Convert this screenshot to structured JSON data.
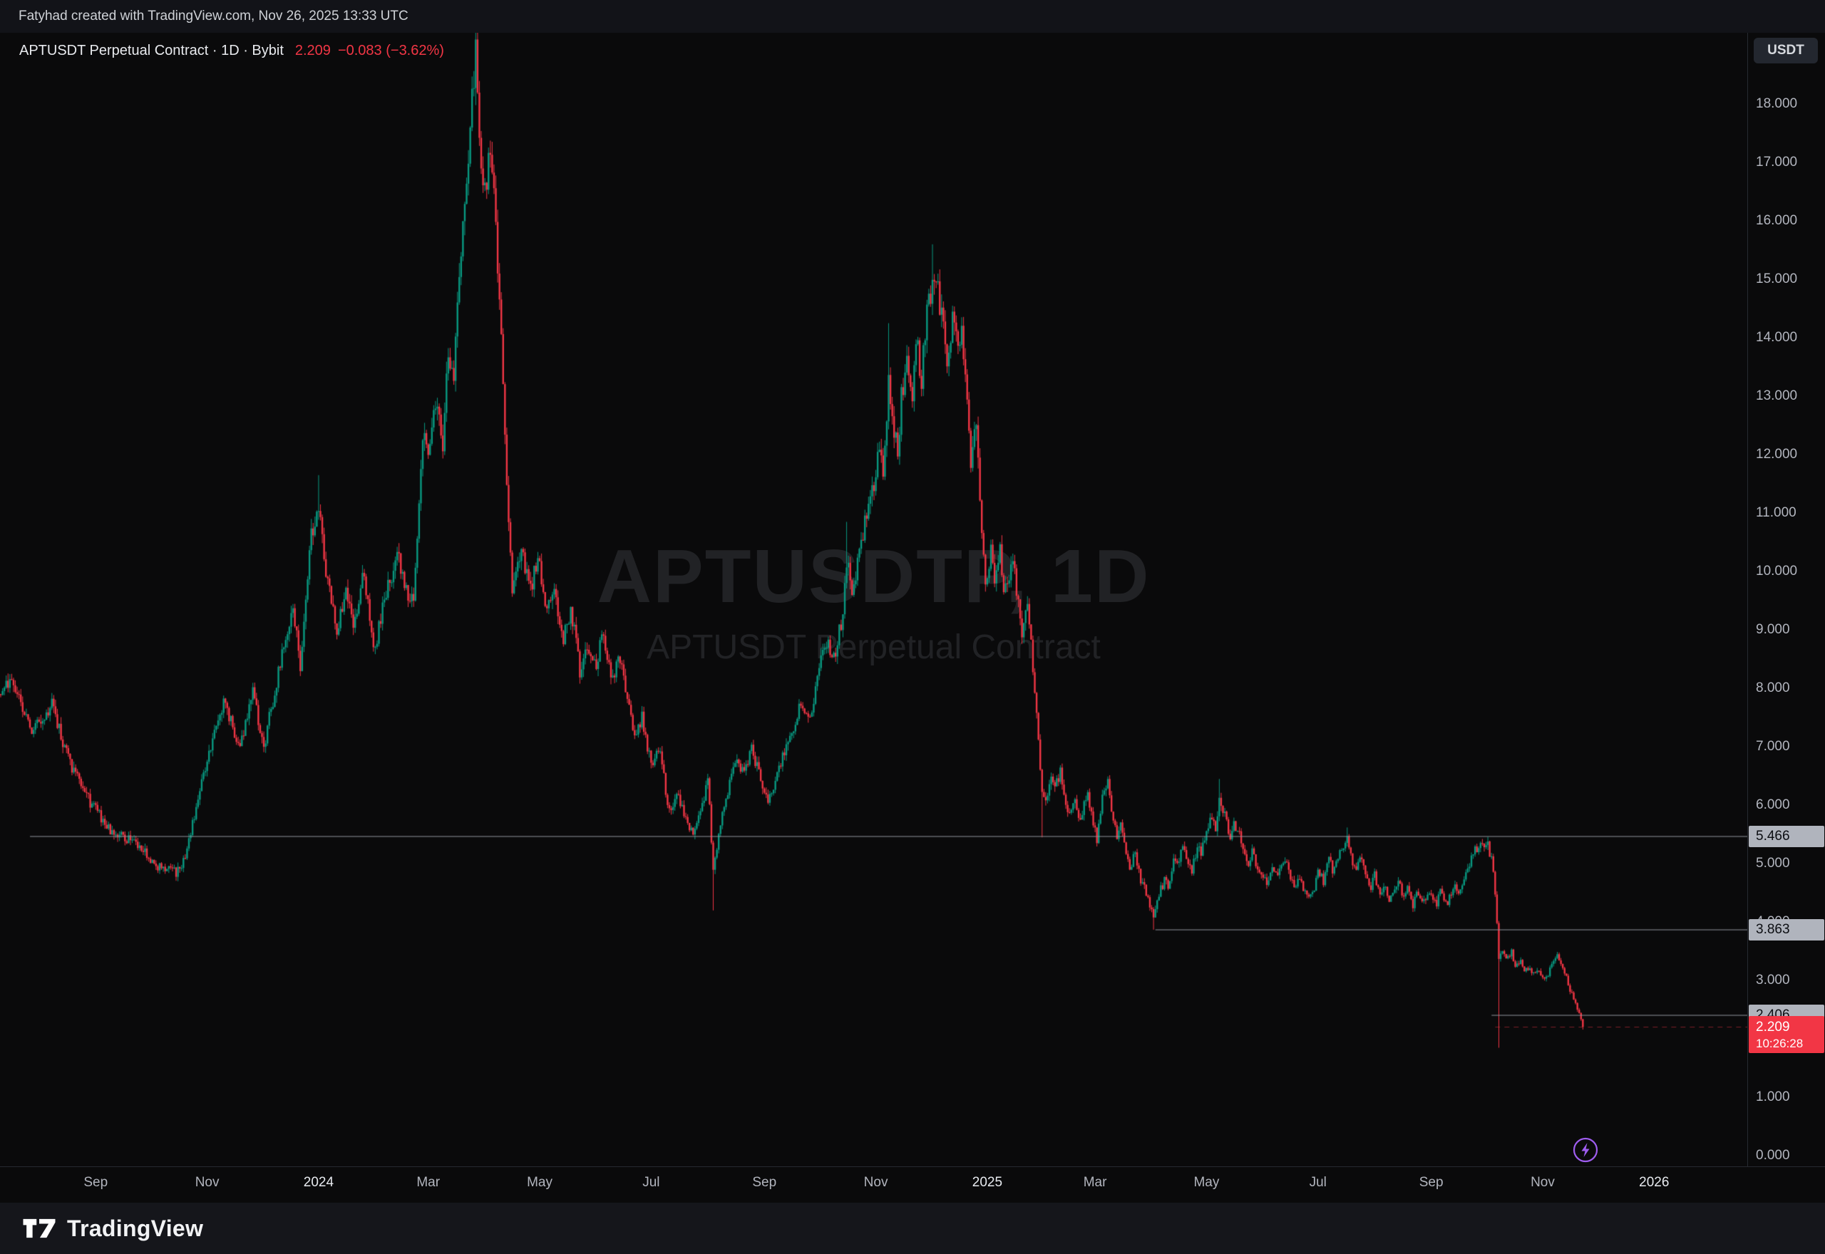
{
  "page": {
    "attribution": "Fatyhad created with TradingView.com, Nov 26, 2025 13:33 UTC",
    "footer_brand": "TradingView"
  },
  "legend": {
    "symbol_title": "APTUSDT Perpetual Contract · 1D · Bybit",
    "last_price": "2.209",
    "change": "−0.083 (−3.62%)"
  },
  "watermark": {
    "line1": "APTUSDTP, 1D",
    "line2": "APTUSDT Perpetual Contract"
  },
  "axis": {
    "currency_button": "USDT"
  },
  "chart_data": {
    "type": "candlestick",
    "symbol": "APTUSDT Perpetual Contract",
    "ticker": "APTUSDTP",
    "exchange": "Bybit",
    "timeframe": "1D",
    "quote_currency": "USDT",
    "last_price": 2.209,
    "change_abs": -0.083,
    "change_pct": -3.62,
    "colors": {
      "up": "#089981",
      "down": "#f23645",
      "ray": "#8f939c",
      "label_bg": "#b0b4bd",
      "label_text": "#0c0e12",
      "current_bg": "#f23645",
      "current_text": "#ffffff",
      "axis_text": "#b2b5be",
      "year_text": "#e7eaef",
      "boost": "#9f5df0",
      "watermark": "rgba(165,172,188,0.15)"
    },
    "y_axis": {
      "min": -0.18,
      "max": 19.22,
      "ticks": [
        {
          "v": 18,
          "t": "18.000"
        },
        {
          "v": 17,
          "t": "17.000"
        },
        {
          "v": 16,
          "t": "16.000"
        },
        {
          "v": 15,
          "t": "15.000"
        },
        {
          "v": 14,
          "t": "14.000"
        },
        {
          "v": 13,
          "t": "13.000"
        },
        {
          "v": 12,
          "t": "12.000"
        },
        {
          "v": 11,
          "t": "11.000"
        },
        {
          "v": 10,
          "t": "10.000"
        },
        {
          "v": 9,
          "t": "9.000"
        },
        {
          "v": 8,
          "t": "8.000"
        },
        {
          "v": 7,
          "t": "7.000"
        },
        {
          "v": 6,
          "t": "6.000"
        },
        {
          "v": 5,
          "t": "5.000"
        },
        {
          "v": 4,
          "t": "4.000"
        },
        {
          "v": 3,
          "t": "3.000"
        },
        {
          "v": 2,
          "t": "2.000"
        },
        {
          "v": 1,
          "t": "1.000"
        },
        {
          "v": 0,
          "t": "0.000"
        }
      ]
    },
    "x_axis": {
      "day_min": -6.4,
      "day_max": 950,
      "epoch_note": "day 0 = 2023-07-17",
      "ticks": [
        {
          "d": 46,
          "t": "Sep"
        },
        {
          "d": 107,
          "t": "Nov"
        },
        {
          "d": 168,
          "t": "2024",
          "year": true
        },
        {
          "d": 228,
          "t": "Mar"
        },
        {
          "d": 289,
          "t": "May"
        },
        {
          "d": 350,
          "t": "Jul"
        },
        {
          "d": 412,
          "t": "Sep"
        },
        {
          "d": 473,
          "t": "Nov"
        },
        {
          "d": 534,
          "t": "2025",
          "year": true
        },
        {
          "d": 593,
          "t": "Mar"
        },
        {
          "d": 654,
          "t": "May"
        },
        {
          "d": 715,
          "t": "Jul"
        },
        {
          "d": 777,
          "t": "Sep"
        },
        {
          "d": 838,
          "t": "Nov"
        },
        {
          "d": 899,
          "t": "2026",
          "year": true
        }
      ]
    },
    "horizontal_lines": [
      {
        "price": 5.466,
        "label": "5.466",
        "from_day": 10
      },
      {
        "price": 3.863,
        "label": "3.863",
        "from_day": 626
      },
      {
        "price": 2.406,
        "label": "2.406",
        "from_day": 810
      }
    ],
    "current_price_label": {
      "label": "2.209",
      "value": 2.209,
      "countdown": "10:26:28"
    },
    "candle_days": [
      -6,
      860
    ],
    "price_path_anchors": [
      [
        -6,
        7.9
      ],
      [
        0,
        8.2
      ],
      [
        10,
        7.3
      ],
      [
        22,
        7.7
      ],
      [
        32,
        6.7
      ],
      [
        42,
        6.1
      ],
      [
        55,
        5.5
      ],
      [
        67,
        5.4
      ],
      [
        80,
        4.95
      ],
      [
        90,
        4.85
      ],
      [
        95,
        5.1
      ],
      [
        104,
        6.4
      ],
      [
        116,
        7.8
      ],
      [
        125,
        7.0
      ],
      [
        132,
        7.9
      ],
      [
        138,
        7.0
      ],
      [
        148,
        8.6
      ],
      [
        154,
        9.4
      ],
      [
        158,
        8.4
      ],
      [
        164,
        10.6
      ],
      [
        168,
        11.2
      ],
      [
        172,
        10.0
      ],
      [
        178,
        8.9
      ],
      [
        183,
        9.8
      ],
      [
        187,
        9.1
      ],
      [
        193,
        10.0
      ],
      [
        198,
        8.6
      ],
      [
        204,
        9.5
      ],
      [
        211,
        10.3
      ],
      [
        215,
        9.8
      ],
      [
        220,
        9.4
      ],
      [
        225,
        12.4
      ],
      [
        229,
        12.0
      ],
      [
        232,
        12.9
      ],
      [
        236,
        12.2
      ],
      [
        239,
        13.8
      ],
      [
        242,
        13.2
      ],
      [
        245,
        15.2
      ],
      [
        248,
        16.2
      ],
      [
        251,
        17.6
      ],
      [
        254,
        18.9
      ],
      [
        256,
        17.3
      ],
      [
        259,
        16.6
      ],
      [
        262,
        17.2
      ],
      [
        265,
        15.9
      ],
      [
        268,
        13.9
      ],
      [
        270,
        12.2
      ],
      [
        274,
        9.6
      ],
      [
        279,
        10.4
      ],
      [
        284,
        9.7
      ],
      [
        288,
        10.2
      ],
      [
        293,
        9.3
      ],
      [
        297,
        9.7
      ],
      [
        302,
        8.8
      ],
      [
        306,
        9.4
      ],
      [
        311,
        8.3
      ],
      [
        315,
        8.8
      ],
      [
        320,
        8.4
      ],
      [
        324,
        9.0
      ],
      [
        328,
        8.1
      ],
      [
        333,
        8.5
      ],
      [
        337,
        7.7
      ],
      [
        342,
        7.2
      ],
      [
        345,
        7.5
      ],
      [
        350,
        6.7
      ],
      [
        354,
        7.0
      ],
      [
        360,
        5.9
      ],
      [
        364,
        6.2
      ],
      [
        369,
        5.8
      ],
      [
        373,
        5.5
      ],
      [
        378,
        6.0
      ],
      [
        381,
        6.5
      ],
      [
        384,
        4.9
      ],
      [
        389,
        5.8
      ],
      [
        393,
        6.4
      ],
      [
        397,
        6.8
      ],
      [
        401,
        6.5
      ],
      [
        405,
        7.0
      ],
      [
        410,
        6.4
      ],
      [
        414,
        6.0
      ],
      [
        419,
        6.5
      ],
      [
        423,
        6.9
      ],
      [
        428,
        7.3
      ],
      [
        432,
        7.8
      ],
      [
        437,
        7.5
      ],
      [
        441,
        8.2
      ],
      [
        446,
        8.8
      ],
      [
        450,
        8.5
      ],
      [
        455,
        9.3
      ],
      [
        457,
        10.2
      ],
      [
        460,
        9.6
      ],
      [
        464,
        10.3
      ],
      [
        468,
        11.0
      ],
      [
        472,
        11.4
      ],
      [
        475,
        12.2
      ],
      [
        477,
        11.7
      ],
      [
        480,
        13.3
      ],
      [
        482,
        12.7
      ],
      [
        485,
        12.0
      ],
      [
        487,
        13.0
      ],
      [
        490,
        13.6
      ],
      [
        493,
        12.8
      ],
      [
        495,
        14.0
      ],
      [
        498,
        13.3
      ],
      [
        501,
        14.4
      ],
      [
        504,
        15.0
      ],
      [
        507,
        14.8
      ],
      [
        510,
        14.1
      ],
      [
        512,
        13.4
      ],
      [
        515,
        14.5
      ],
      [
        518,
        13.7
      ],
      [
        520,
        14.2
      ],
      [
        523,
        12.8
      ],
      [
        525,
        11.9
      ],
      [
        528,
        12.5
      ],
      [
        530,
        11.2
      ],
      [
        533,
        9.7
      ],
      [
        536,
        10.3
      ],
      [
        538,
        9.9
      ],
      [
        541,
        10.5
      ],
      [
        543,
        9.6
      ],
      [
        546,
        10.0
      ],
      [
        548,
        10.3
      ],
      [
        551,
        9.4
      ],
      [
        553,
        9.0
      ],
      [
        556,
        9.4
      ],
      [
        559,
        8.4
      ],
      [
        561,
        7.6
      ],
      [
        564,
        6.2
      ],
      [
        566,
        6.0
      ],
      [
        569,
        6.5
      ],
      [
        571,
        6.3
      ],
      [
        574,
        6.6
      ],
      [
        576,
        6.1
      ],
      [
        579,
        5.8
      ],
      [
        582,
        6.1
      ],
      [
        584,
        5.7
      ],
      [
        587,
        6.0
      ],
      [
        589,
        6.2
      ],
      [
        592,
        5.7
      ],
      [
        594,
        5.4
      ],
      [
        597,
        6.1
      ],
      [
        600,
        6.4
      ],
      [
        602,
        5.9
      ],
      [
        605,
        5.5
      ],
      [
        607,
        5.7
      ],
      [
        610,
        5.2
      ],
      [
        612,
        4.9
      ],
      [
        615,
        5.2
      ],
      [
        618,
        4.7
      ],
      [
        620,
        4.6
      ],
      [
        623,
        4.3
      ],
      [
        625,
        4.05
      ],
      [
        628,
        4.5
      ],
      [
        631,
        4.7
      ],
      [
        633,
        4.6
      ],
      [
        636,
        5.1
      ],
      [
        638,
        5.0
      ],
      [
        641,
        5.3
      ],
      [
        643,
        5.1
      ],
      [
        646,
        4.9
      ],
      [
        649,
        5.3
      ],
      [
        651,
        5.2
      ],
      [
        654,
        5.5
      ],
      [
        656,
        5.8
      ],
      [
        659,
        5.6
      ],
      [
        661,
        6.1
      ],
      [
        664,
        5.8
      ],
      [
        667,
        5.5
      ],
      [
        669,
        5.7
      ],
      [
        672,
        5.5
      ],
      [
        674,
        5.2
      ],
      [
        677,
        5.0
      ],
      [
        679,
        5.2
      ],
      [
        682,
        4.9
      ],
      [
        685,
        4.8
      ],
      [
        687,
        4.6
      ],
      [
        690,
        4.9
      ],
      [
        692,
        4.8
      ],
      [
        695,
        5.0
      ],
      [
        697,
        5.1
      ],
      [
        700,
        4.8
      ],
      [
        703,
        4.6
      ],
      [
        705,
        4.8
      ],
      [
        708,
        4.5
      ],
      [
        710,
        4.4
      ],
      [
        713,
        4.6
      ],
      [
        715,
        4.9
      ],
      [
        718,
        4.7
      ],
      [
        721,
        5.1
      ],
      [
        723,
        4.9
      ],
      [
        726,
        5.1
      ],
      [
        728,
        5.3
      ],
      [
        731,
        5.4
      ],
      [
        733,
        5.1
      ],
      [
        736,
        4.9
      ],
      [
        739,
        5.1
      ],
      [
        741,
        4.8
      ],
      [
        744,
        4.6
      ],
      [
        746,
        4.8
      ],
      [
        749,
        4.5
      ],
      [
        751,
        4.6
      ],
      [
        754,
        4.4
      ],
      [
        757,
        4.5
      ],
      [
        759,
        4.7
      ],
      [
        762,
        4.4
      ],
      [
        764,
        4.6
      ],
      [
        767,
        4.3
      ],
      [
        769,
        4.5
      ],
      [
        772,
        4.3
      ],
      [
        775,
        4.4
      ],
      [
        777,
        4.5
      ],
      [
        780,
        4.3
      ],
      [
        782,
        4.6
      ],
      [
        785,
        4.3
      ],
      [
        787,
        4.4
      ],
      [
        790,
        4.6
      ],
      [
        793,
        4.5
      ],
      [
        795,
        4.8
      ],
      [
        798,
        5.0
      ],
      [
        800,
        5.2
      ],
      [
        803,
        5.3
      ],
      [
        805,
        5.4
      ],
      [
        808,
        5.3
      ],
      [
        810,
        5.1
      ],
      [
        812,
        4.5
      ],
      [
        814,
        3.4
      ],
      [
        816,
        3.5
      ],
      [
        818,
        3.35
      ],
      [
        821,
        3.5
      ],
      [
        823,
        3.25
      ],
      [
        826,
        3.35
      ],
      [
        828,
        3.15
      ],
      [
        831,
        3.25
      ],
      [
        833,
        3.1
      ],
      [
        836,
        3.2
      ],
      [
        838,
        3.05
      ],
      [
        841,
        3.1
      ],
      [
        843,
        3.3
      ],
      [
        846,
        3.4
      ],
      [
        848,
        3.25
      ],
      [
        851,
        3.05
      ],
      [
        853,
        2.85
      ],
      [
        856,
        2.6
      ],
      [
        858,
        2.45
      ],
      [
        860,
        2.209
      ]
    ],
    "spikes": [
      {
        "d": 168,
        "high": 11.65
      },
      {
        "d": 254,
        "high": 19.3
      },
      {
        "d": 384,
        "low": 4.2
      },
      {
        "d": 457,
        "high": 10.85
      },
      {
        "d": 480,
        "high": 14.25
      },
      {
        "d": 504,
        "high": 15.6
      },
      {
        "d": 564,
        "low": 5.45
      },
      {
        "d": 625,
        "low": 3.87
      },
      {
        "d": 661,
        "high": 6.45
      },
      {
        "d": 731,
        "high": 5.62
      },
      {
        "d": 814,
        "low": 1.85
      }
    ]
  }
}
